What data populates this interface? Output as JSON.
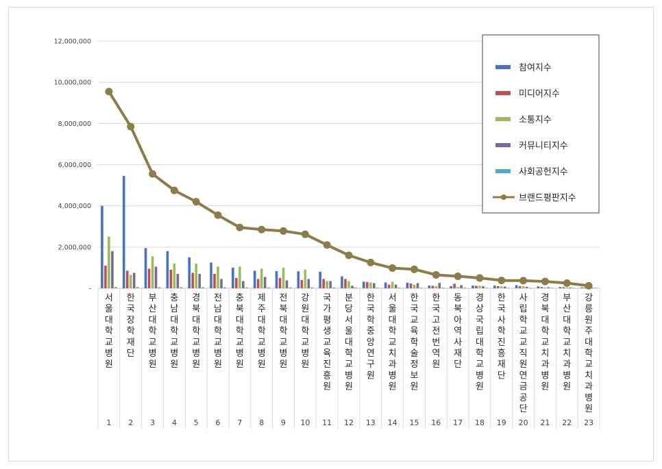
{
  "chart_data": {
    "type": "bar+line",
    "ylim": [
      0,
      12000000
    ],
    "yticks": [
      "-",
      "2,000,000",
      "4,000,000",
      "6,000,000",
      "8,000,000",
      "10,000,000",
      "12,000,000"
    ],
    "grid": true,
    "legend_position": "top-right",
    "categories": [
      {
        "num": "1",
        "name": "서울대학교병원"
      },
      {
        "num": "2",
        "name": "한국장학재단"
      },
      {
        "num": "3",
        "name": "부산대학교병원"
      },
      {
        "num": "4",
        "name": "충남대학교병원"
      },
      {
        "num": "5",
        "name": "경북대학교병원"
      },
      {
        "num": "6",
        "name": "전남대학교병원"
      },
      {
        "num": "7",
        "name": "충북대학교병원"
      },
      {
        "num": "8",
        "name": "제주대학교병원"
      },
      {
        "num": "9",
        "name": "전북대학교병원"
      },
      {
        "num": "10",
        "name": "강원대학교병원"
      },
      {
        "num": "11",
        "name": "국가평생교육진흥원"
      },
      {
        "num": "12",
        "name": "분당서울대학교병원"
      },
      {
        "num": "13",
        "name": "한국학중앙연구원"
      },
      {
        "num": "14",
        "name": "서울대학교치과병원"
      },
      {
        "num": "15",
        "name": "한국교육학술정보원"
      },
      {
        "num": "16",
        "name": "한국고전번역원"
      },
      {
        "num": "17",
        "name": "동북아역사재단"
      },
      {
        "num": "18",
        "name": "경상국립대학교병원"
      },
      {
        "num": "19",
        "name": "한국사학진흥재단"
      },
      {
        "num": "20",
        "name": "사립학교교직원연금공단"
      },
      {
        "num": "21",
        "name": "경북대학교치과병원"
      },
      {
        "num": "22",
        "name": "부산대학교치과병원"
      },
      {
        "num": "23",
        "name": "강릉원주대학교치과병원"
      }
    ],
    "series": [
      {
        "name": "참여지수",
        "color": "#4472c4",
        "kind": "bar",
        "values": [
          4000000,
          5450000,
          1950000,
          1800000,
          1500000,
          1250000,
          1000000,
          850000,
          830000,
          820000,
          800000,
          580000,
          320000,
          280000,
          270000,
          130000,
          100000,
          130000,
          130000,
          150000,
          90000,
          60000,
          40000
        ]
      },
      {
        "name": "미디어지수",
        "color": "#c0504d",
        "kind": "bar",
        "values": [
          1100000,
          850000,
          950000,
          900000,
          750000,
          700000,
          500000,
          450000,
          500000,
          400000,
          450000,
          450000,
          300000,
          180000,
          230000,
          120000,
          220000,
          120000,
          100000,
          100000,
          60000,
          50000,
          40000
        ]
      },
      {
        "name": "소통지수",
        "color": "#9bbb59",
        "kind": "bar",
        "values": [
          2500000,
          650000,
          1550000,
          1200000,
          1200000,
          1050000,
          1050000,
          950000,
          1000000,
          900000,
          350000,
          350000,
          280000,
          320000,
          170000,
          100000,
          60000,
          120000,
          90000,
          100000,
          40000,
          40000,
          30000
        ]
      },
      {
        "name": "커뮤니티지수",
        "color": "#8064a2",
        "kind": "bar",
        "values": [
          1800000,
          750000,
          1050000,
          700000,
          700000,
          450000,
          350000,
          550000,
          380000,
          450000,
          350000,
          120000,
          250000,
          180000,
          250000,
          260000,
          150000,
          100000,
          80000,
          70000,
          50000,
          40000,
          30000
        ]
      },
      {
        "name": "사회공헌지수",
        "color": "#4bacc6",
        "kind": "bar",
        "values": [
          60000,
          60000,
          50000,
          50000,
          50000,
          50000,
          40000,
          40000,
          40000,
          40000,
          40000,
          40000,
          30000,
          30000,
          30000,
          30000,
          30000,
          20000,
          20000,
          20000,
          20000,
          20000,
          20000
        ]
      },
      {
        "name": "브랜드평판지수",
        "color": "#8a7d4a",
        "kind": "line",
        "values": [
          9550000,
          7850000,
          5550000,
          4750000,
          4200000,
          3550000,
          2950000,
          2850000,
          2780000,
          2620000,
          2100000,
          1600000,
          1250000,
          980000,
          920000,
          650000,
          580000,
          500000,
          380000,
          370000,
          330000,
          250000,
          120000
        ]
      }
    ]
  }
}
